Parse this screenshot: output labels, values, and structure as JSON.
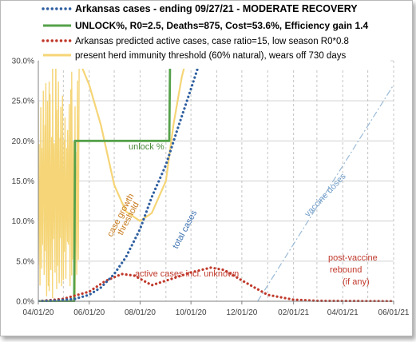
{
  "chart_data": {
    "type": "line",
    "title": "",
    "xlabel": "",
    "ylabel": "",
    "x_ticks": [
      "04/01/20",
      "06/01/20",
      "08/01/20",
      "10/01/20",
      "12/01/20",
      "02/01/21",
      "04/01/21",
      "06/01/21"
    ],
    "y_ticks": [
      "0.0%",
      "5.0%",
      "10.0%",
      "15.0%",
      "20.0%",
      "25.0%",
      "30.0%"
    ],
    "xlim": [
      "2020-04-01",
      "2021-06-01"
    ],
    "ylim": [
      0,
      30
    ],
    "y_unit": "%",
    "grid": true,
    "legend_position": "top",
    "legend": [
      {
        "label": "Arkansas cases - ending 09/27/21 - MODERATE RECOVERY",
        "color": "#2f5fa0",
        "style": "dotted"
      },
      {
        "label": "UNLOCK%, R0=2.5,  Deaths=875, Cost=53.6%, Efficiency gain 1.4",
        "color": "#55a14a",
        "style": "solid"
      },
      {
        "label": "Arkansas predicted active cases, case ratio=15, low season R0*0.8",
        "color": "#c0392b",
        "style": "dotted"
      },
      {
        "label": "present herd immunity threshold (60% natural), wears off 730 days",
        "color": "#f5d577",
        "style": "solid"
      }
    ],
    "series": [
      {
        "name": "Arkansas cases - ending 09/27/21 - MODERATE RECOVERY",
        "color": "#2f5fa0",
        "points": [
          [
            "2020-04-01",
            0.0
          ],
          [
            "2020-04-25",
            0.1
          ],
          [
            "2020-05-15",
            0.3
          ],
          [
            "2020-06-01",
            0.8
          ],
          [
            "2020-06-15",
            1.7
          ],
          [
            "2020-07-01",
            3.4
          ],
          [
            "2020-07-15",
            5.5
          ],
          [
            "2020-08-01",
            9.0
          ],
          [
            "2020-08-15",
            13.0
          ],
          [
            "2020-09-01",
            17.0
          ],
          [
            "2020-09-15",
            21.5
          ],
          [
            "2020-10-01",
            26.5
          ],
          [
            "2020-10-12",
            30.0
          ]
        ]
      },
      {
        "name": "UNLOCK%, R0=2.5,  Deaths=875, Cost=53.6%, Efficiency gain 1.4",
        "color": "#55a14a",
        "points": [
          [
            "2020-04-01",
            0.0
          ],
          [
            "2020-05-14",
            0.0
          ],
          [
            "2020-05-15",
            20.0
          ],
          [
            "2020-09-05",
            20.0
          ],
          [
            "2020-09-06",
            30.0
          ]
        ]
      },
      {
        "name": "Arkansas predicted active cases, case ratio=15, low season R0*0.8",
        "color": "#c0392b",
        "points": [
          [
            "2020-04-01",
            0.0
          ],
          [
            "2020-05-01",
            0.3
          ],
          [
            "2020-06-01",
            1.2
          ],
          [
            "2020-06-20",
            2.5
          ],
          [
            "2020-07-10",
            3.4
          ],
          [
            "2020-07-25",
            3.2
          ],
          [
            "2020-08-15",
            2.0
          ],
          [
            "2020-09-05",
            2.7
          ],
          [
            "2020-10-01",
            3.6
          ],
          [
            "2020-10-25",
            4.2
          ],
          [
            "2020-11-10",
            3.9
          ],
          [
            "2020-12-01",
            2.6
          ],
          [
            "2021-01-01",
            0.8
          ],
          [
            "2021-02-01",
            0.2
          ],
          [
            "2021-03-01",
            0.05
          ],
          [
            "2021-06-01",
            0.0
          ]
        ]
      },
      {
        "name": "present herd immunity threshold (60% natural), wears off 730 days",
        "color": "#f5d577",
        "note": "case-growth threshold is noisy (oscillating 0-30%) before mid-May 2020, then declines",
        "points": [
          [
            "2020-05-20",
            30.0
          ],
          [
            "2020-06-01",
            27.0
          ],
          [
            "2020-06-15",
            22.0
          ],
          [
            "2020-07-01",
            14.5
          ],
          [
            "2020-07-15",
            11.2
          ],
          [
            "2020-08-01",
            10.0
          ],
          [
            "2020-08-15",
            11.0
          ],
          [
            "2020-09-01",
            15.0
          ],
          [
            "2020-09-10",
            22.0
          ],
          [
            "2020-09-20",
            28.0
          ],
          [
            "2020-09-25",
            30.0
          ]
        ]
      },
      {
        "name": "vaccine doses",
        "color": "#9bbad6",
        "points": [
          [
            "2020-12-20",
            0.0
          ],
          [
            "2021-06-01",
            27.0
          ]
        ]
      }
    ],
    "annotations": [
      {
        "text": "unlock %",
        "color": "#4a8a3c"
      },
      {
        "text": "case growth",
        "color": "#c77a1a"
      },
      {
        "text": "threshold",
        "color": "#c77a1a"
      },
      {
        "text": "total cases",
        "color": "#3d72b0"
      },
      {
        "text": "vaccine doses",
        "color": "#6f9cc8"
      },
      {
        "text": "active cases incl. unknown",
        "color": "#c0392b"
      },
      {
        "text": "post-vaccine",
        "color": "#c0392b"
      },
      {
        "text": "rebound",
        "color": "#c0392b"
      },
      {
        "text": "(if any)",
        "color": "#c0392b"
      }
    ]
  }
}
